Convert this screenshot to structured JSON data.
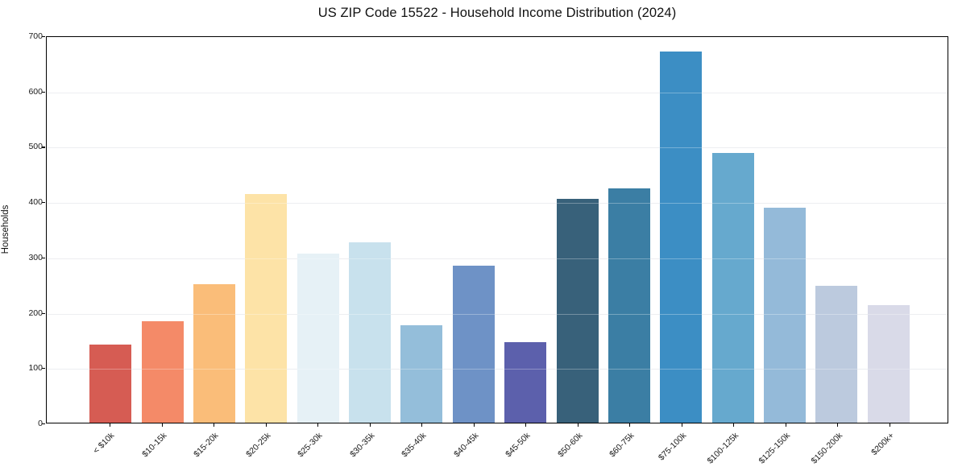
{
  "chart_data": {
    "type": "bar",
    "title": "US ZIP Code 15522 - Household Income Distribution (2024)",
    "xlabel": "",
    "ylabel": "Households",
    "categories": [
      "< $10k",
      "$10-15k",
      "$15-20k",
      "$20-25k",
      "$25-30k",
      "$30-35k",
      "$35-40k",
      "$40-45k",
      "$45-50k",
      "$50-60k",
      "$60-75k",
      "$75-100k",
      "$100-125k",
      "$125-150k",
      "$150-200k",
      "$200k+"
    ],
    "values": [
      141,
      183,
      250,
      414,
      305,
      326,
      176,
      284,
      146,
      405,
      424,
      671,
      487,
      388,
      248,
      212
    ],
    "bar_colors": [
      "#d65c53",
      "#f48a68",
      "#fabd79",
      "#fde3a7",
      "#e6f1f6",
      "#c8e1ed",
      "#94beda",
      "#6e92c6",
      "#5c60ac",
      "#38617a",
      "#3b7ea4",
      "#3c8ec4",
      "#66a9ce",
      "#94bad9",
      "#bccade",
      "#d9dae8"
    ],
    "yticks": [
      0,
      100,
      200,
      300,
      400,
      500,
      600,
      700
    ],
    "ylim": [
      0,
      700
    ],
    "grid": "horizontal",
    "legend": false,
    "background_color": "#ffffff",
    "axis_color": "#000000",
    "grid_color": "#e6e7eb",
    "x_tick_label_rotation_deg": 45
  }
}
